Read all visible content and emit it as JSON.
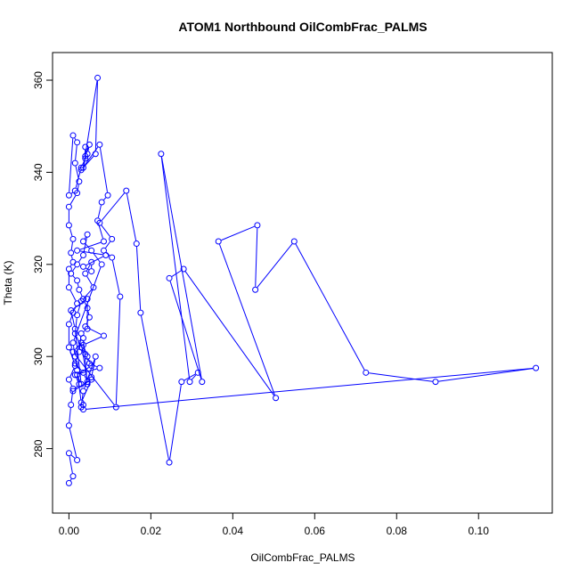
{
  "chart_data": {
    "type": "line",
    "title": "ATOM1 Northbound OilCombFrac_PALMS",
    "xlabel": "OilCombFrac_PALMS",
    "ylabel": "Theta (K)",
    "xlim": [
      -0.004,
      0.118
    ],
    "ylim": [
      266,
      366
    ],
    "x_ticks": [
      0.0,
      0.02,
      0.04,
      0.06,
      0.08,
      0.1
    ],
    "x_tick_labels": [
      "0.00",
      "0.02",
      "0.04",
      "0.06",
      "0.08",
      "0.10"
    ],
    "y_ticks": [
      280,
      300,
      320,
      340,
      360
    ],
    "y_tick_labels": [
      "280",
      "300",
      "320",
      "340",
      "360"
    ],
    "grid": false,
    "line_color": "#0000ff",
    "marker": "open-circle",
    "series": [
      {
        "x": [
          0.0,
          0.001,
          0.0,
          0.002,
          0.0,
          0.0005,
          0.001,
          0.0,
          0.0015,
          0.0,
          0.0,
          0.001,
          0.002,
          0.0,
          0.0,
          0.001,
          0.0005,
          0.001,
          0.0,
          0.0,
          0.002,
          0.0025,
          0.0015,
          0.002,
          0.001,
          0.0,
          0.0015,
          0.003,
          0.0045,
          0.005,
          0.004,
          0.004,
          0.004,
          0.0035,
          0.007,
          0.0065,
          0.003,
          0.0075,
          0.0095,
          0.008,
          0.007,
          0.0085,
          0.002,
          0.009,
          0.0035,
          0.0055,
          0.0055,
          0.004,
          0.006,
          0.003,
          0.002,
          0.0015,
          0.003,
          0.004,
          0.005,
          0.0075,
          0.0015,
          0.0025,
          0.001,
          0.0055,
          0.003,
          0.002,
          0.0015,
          0.001,
          0.008,
          0.0055,
          0.0035,
          0.0045,
          0.0035,
          0.002,
          0.0005,
          0.002,
          0.0025,
          0.0035,
          0.0045,
          0.005,
          0.004,
          0.0085,
          0.0035,
          0.0045,
          0.0055,
          0.002,
          0.003,
          0.0015,
          0.0005,
          0.0045,
          0.0045,
          0.003,
          0.0025,
          0.0015,
          0.0035,
          0.0045,
          0.003,
          0.001,
          0.0115,
          0.0125,
          0.0105,
          0.0085,
          0.0105,
          0.0075,
          0.014,
          0.0165,
          0.0175,
          0.0245,
          0.0275,
          0.0315,
          0.0295,
          0.0225,
          0.0325,
          0.0245,
          0.028,
          0.0505,
          0.0365,
          0.046,
          0.0455,
          0.055,
          0.0725,
          0.0895,
          0.114,
          0.0035,
          0.0035,
          0.003,
          0.0035,
          0.0065,
          0.0055,
          0.0045,
          0.0035
        ],
        "y": [
          272.5,
          274.0,
          279.0,
          277.5,
          285.0,
          289.5,
          293.0,
          295.0,
          298.0,
          302.0,
          307.0,
          309.5,
          311.5,
          315.0,
          319.0,
          320.5,
          322.5,
          325.5,
          328.5,
          332.5,
          335.5,
          338.0,
          342.0,
          346.5,
          348.0,
          335.0,
          336.0,
          341.0,
          344.0,
          346.0,
          343.5,
          345.5,
          343.0,
          341.0,
          360.5,
          344.0,
          340.5,
          346.0,
          335.0,
          333.5,
          329.5,
          325.0,
          323.0,
          322.0,
          319.5,
          318.5,
          320.5,
          318.0,
          315.0,
          312.0,
          309.0,
          305.0,
          302.0,
          300.5,
          298.5,
          297.5,
          296.0,
          294.0,
          292.5,
          295.0,
          290.0,
          297.0,
          300.0,
          303.0,
          320.0,
          323.0,
          325.0,
          326.5,
          322.0,
          320.0,
          318.0,
          316.5,
          314.5,
          312.5,
          310.5,
          308.5,
          306.5,
          304.5,
          302.5,
          300.0,
          298.0,
          296.0,
          294.0,
          306.0,
          310.0,
          312.5,
          306.0,
          305.0,
          301.0,
          298.5,
          296.5,
          294.5,
          303.0,
          301.0,
          289.0,
          313.0,
          321.5,
          323.0,
          325.5,
          329.0,
          336.0,
          324.5,
          309.5,
          277.0,
          294.5,
          296.5,
          294.5,
          344.0,
          294.5,
          317.0,
          319.0,
          291.0,
          325.0,
          328.5,
          314.5,
          325.0,
          296.5,
          294.5,
          297.5,
          288.5,
          289.5,
          289.0,
          292.5,
          300.0,
          295.5,
          294.0,
          304.0
        ]
      }
    ]
  }
}
